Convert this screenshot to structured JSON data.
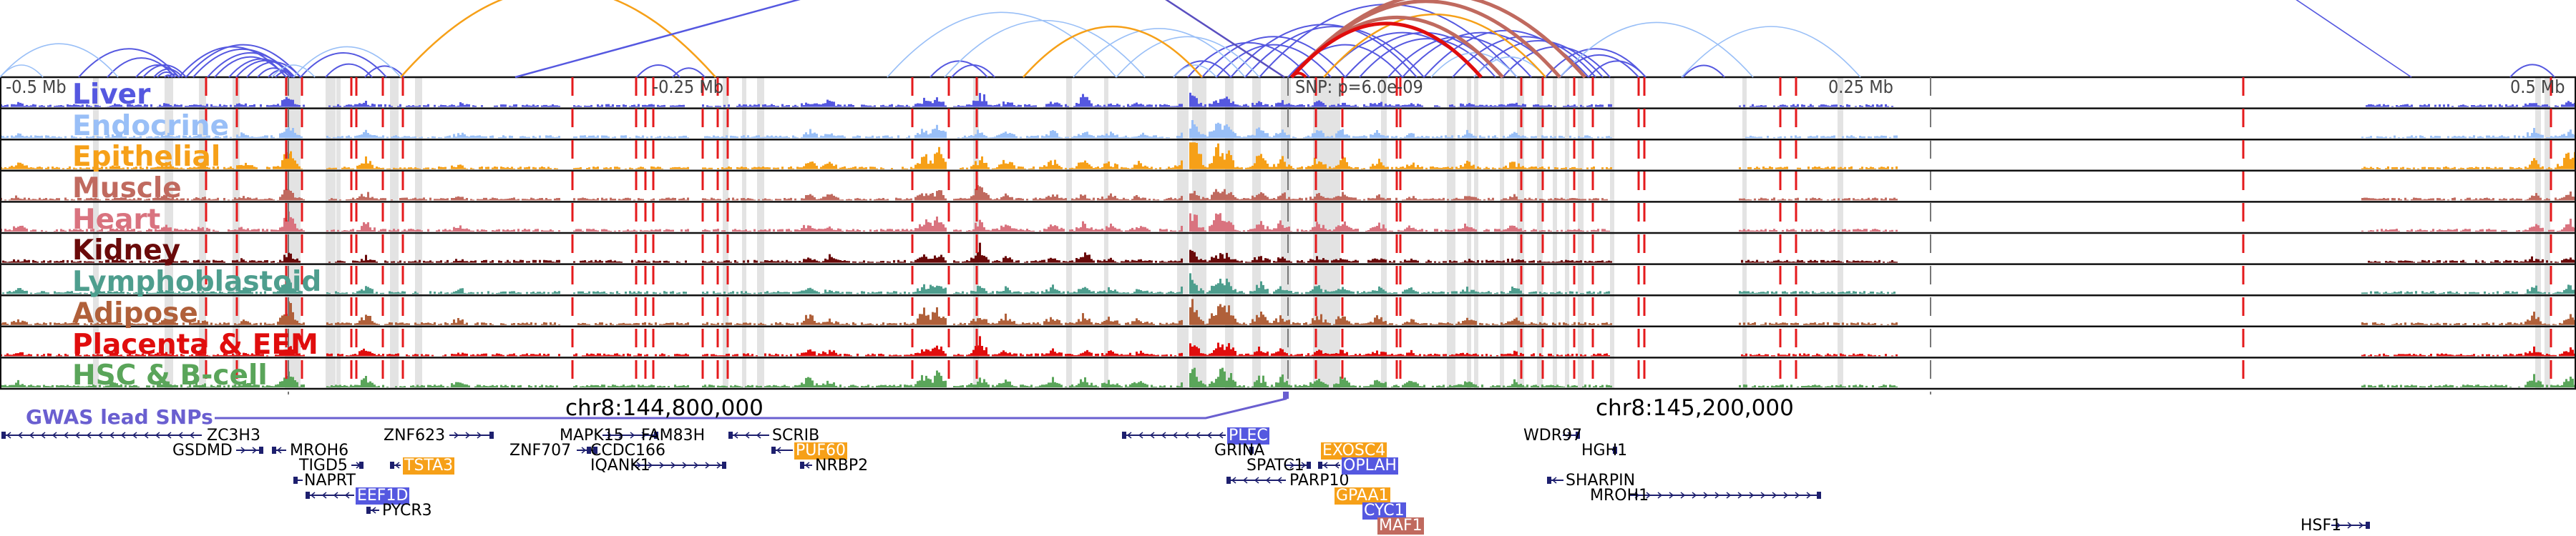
{
  "axis": {
    "ticks": [
      "-0.5 Mb",
      "-0.25 Mb",
      "0.25 Mb",
      "0.5 Mb"
    ],
    "snp_label": "SNP: p=6.0e-09"
  },
  "tracks": [
    {
      "name": "Liver",
      "color": "#5558e0"
    },
    {
      "name": "Endocrine",
      "color": "#99bff7"
    },
    {
      "name": "Epithelial",
      "color": "#f6a018"
    },
    {
      "name": "Muscle",
      "color": "#c06a5f"
    },
    {
      "name": "Heart",
      "color": "#d9737f"
    },
    {
      "name": "Kidney",
      "color": "#6a0a0a"
    },
    {
      "name": "Lymphoblastoid",
      "color": "#4e9e8e"
    },
    {
      "name": "Adipose",
      "color": "#b0603a"
    },
    {
      "name": "Placenta & EEM",
      "color": "#e00d0d"
    },
    {
      "name": "HSC & B-cell",
      "color": "#5aa55a"
    }
  ],
  "gwas": {
    "label": "GWAS lead SNPs",
    "color": "#6a5fd0"
  },
  "coordinates": [
    "chr8:144,800,000",
    "chr8:145,200,000"
  ],
  "genes": [
    {
      "name": "ZC3H3",
      "strand": "-",
      "highlight": null
    },
    {
      "name": "GSDMD",
      "strand": "+",
      "highlight": null
    },
    {
      "name": "MROH6",
      "strand": "-",
      "highlight": null
    },
    {
      "name": "TIGD5",
      "strand": "+",
      "highlight": null
    },
    {
      "name": "NAPRT",
      "strand": "-",
      "highlight": null
    },
    {
      "name": "EEF1D",
      "strand": "-",
      "highlight": "Liver"
    },
    {
      "name": "PYCR3",
      "strand": "-",
      "highlight": null
    },
    {
      "name": "ZNF623",
      "strand": "+",
      "highlight": null
    },
    {
      "name": "TSTA3",
      "strand": "-",
      "highlight": "Epithelial"
    },
    {
      "name": "ZNF707",
      "strand": "+",
      "highlight": null
    },
    {
      "name": "MAPK15",
      "strand": "+",
      "highlight": null
    },
    {
      "name": "FAM83H",
      "strand": "-",
      "highlight": null
    },
    {
      "name": "CCDC166",
      "strand": "-",
      "highlight": null
    },
    {
      "name": "IQANK1",
      "strand": "+",
      "highlight": null
    },
    {
      "name": "SCRIB",
      "strand": "-",
      "highlight": null
    },
    {
      "name": "PUF60",
      "strand": "-",
      "highlight": "Epithelial"
    },
    {
      "name": "NRBP2",
      "strand": "-",
      "highlight": null
    },
    {
      "name": "PLEC",
      "strand": "-",
      "highlight": "Liver"
    },
    {
      "name": "GRINA",
      "strand": "+",
      "highlight": null
    },
    {
      "name": "SPATC1",
      "strand": "+",
      "highlight": null
    },
    {
      "name": "PARP10",
      "strand": "-",
      "highlight": null
    },
    {
      "name": "EXOSC4",
      "strand": "+",
      "highlight": "Epithelial"
    },
    {
      "name": "OPLAH",
      "strand": "-",
      "highlight": "Liver"
    },
    {
      "name": "GPAA1",
      "strand": "+",
      "highlight": "Epithelial"
    },
    {
      "name": "CYC1",
      "strand": "+",
      "highlight": "Liver"
    },
    {
      "name": "MAF1",
      "strand": "+",
      "highlight": "Muscle"
    },
    {
      "name": "WDR97",
      "strand": "+",
      "highlight": null
    },
    {
      "name": "HGH1",
      "strand": "+",
      "highlight": null
    },
    {
      "name": "SHARPIN",
      "strand": "-",
      "highlight": null
    },
    {
      "name": "MROH1",
      "strand": "+",
      "highlight": null
    },
    {
      "name": "HSF1",
      "strand": "+",
      "highlight": null
    }
  ],
  "colors": {
    "variant_line": "#e41a1c",
    "shade": "#e3e3e3",
    "gene": "#1d1f6e",
    "border": "#111111"
  }
}
